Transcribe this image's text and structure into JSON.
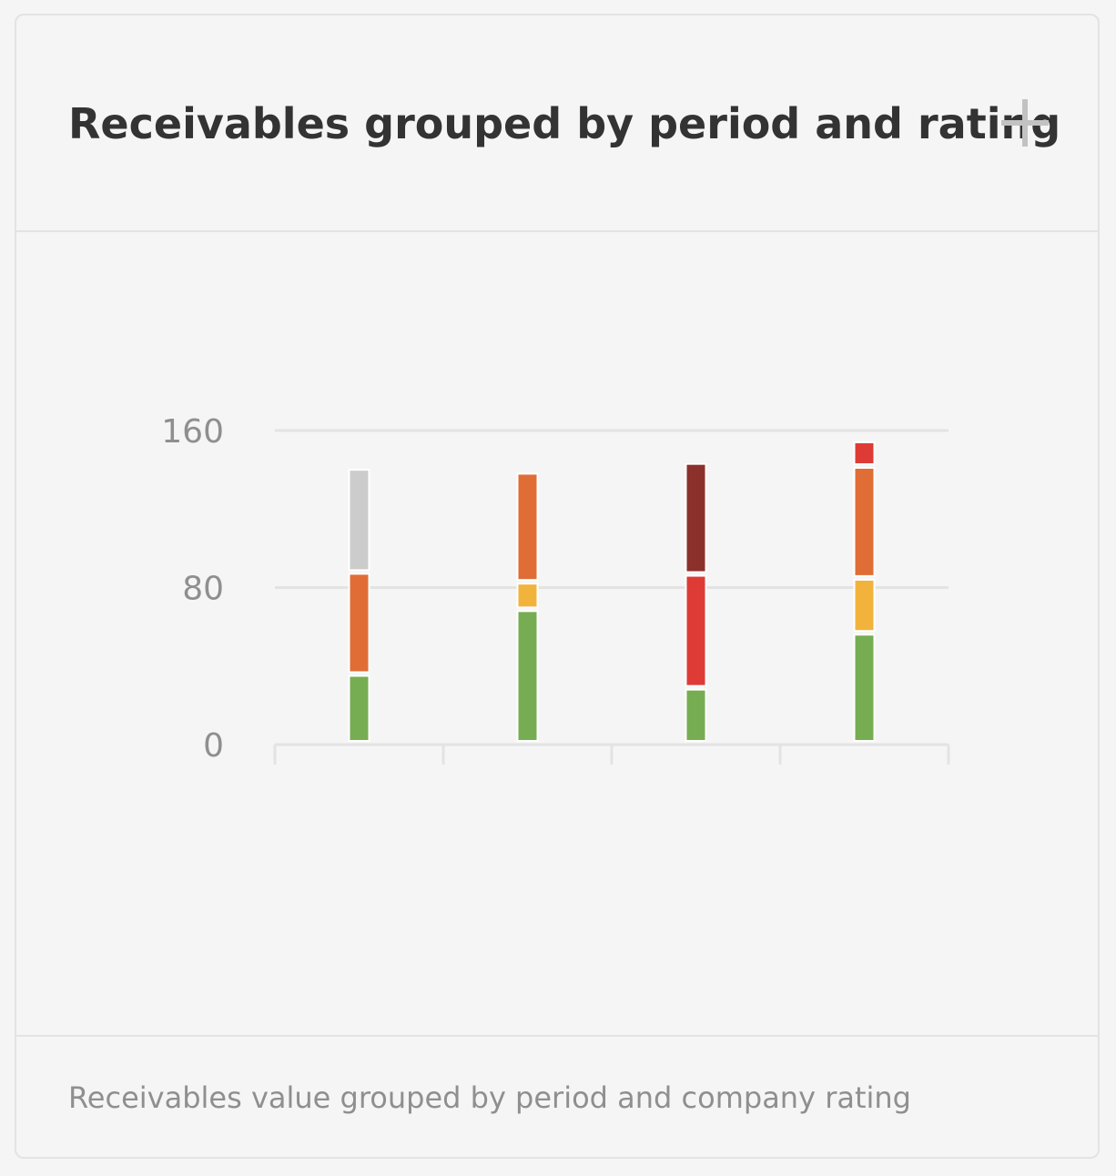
{
  "card": {
    "title": "Receivables grouped by period and rating",
    "add_icon": "plus-icon",
    "footer": "Receivables value grouped by period and company rating"
  },
  "colors": {
    "green": "#76ad52",
    "yellow": "#f2b33d",
    "orange": "#e06d36",
    "red": "#de3b36",
    "dark_red": "#8c302b",
    "gray": "#cccccc",
    "grid": "#e3e3e3",
    "tick_text": "#8f8f8f"
  },
  "chart_data": {
    "type": "bar",
    "stacked": true,
    "categories": [
      "",
      "",
      "",
      ""
    ],
    "ylim": [
      0,
      160
    ],
    "yticks": [
      "0",
      "80",
      "160"
    ],
    "grid": true,
    "series": [
      {
        "color": "#76ad52",
        "values": [
          35,
          68,
          28,
          56
        ]
      },
      {
        "color": "#f2b33d",
        "values": [
          0,
          14,
          0,
          28
        ]
      },
      {
        "color": "#de3b36",
        "values": [
          0,
          0,
          58,
          0
        ]
      },
      {
        "color": "#e06d36",
        "values": [
          52,
          56,
          0,
          57
        ]
      },
      {
        "color": "#8c302b",
        "values": [
          0,
          0,
          57,
          0
        ]
      },
      {
        "color": "#cccccc",
        "values": [
          53,
          0,
          0,
          0
        ]
      },
      {
        "color": "#de3b36",
        "values": [
          0,
          0,
          0,
          13
        ]
      }
    ]
  }
}
